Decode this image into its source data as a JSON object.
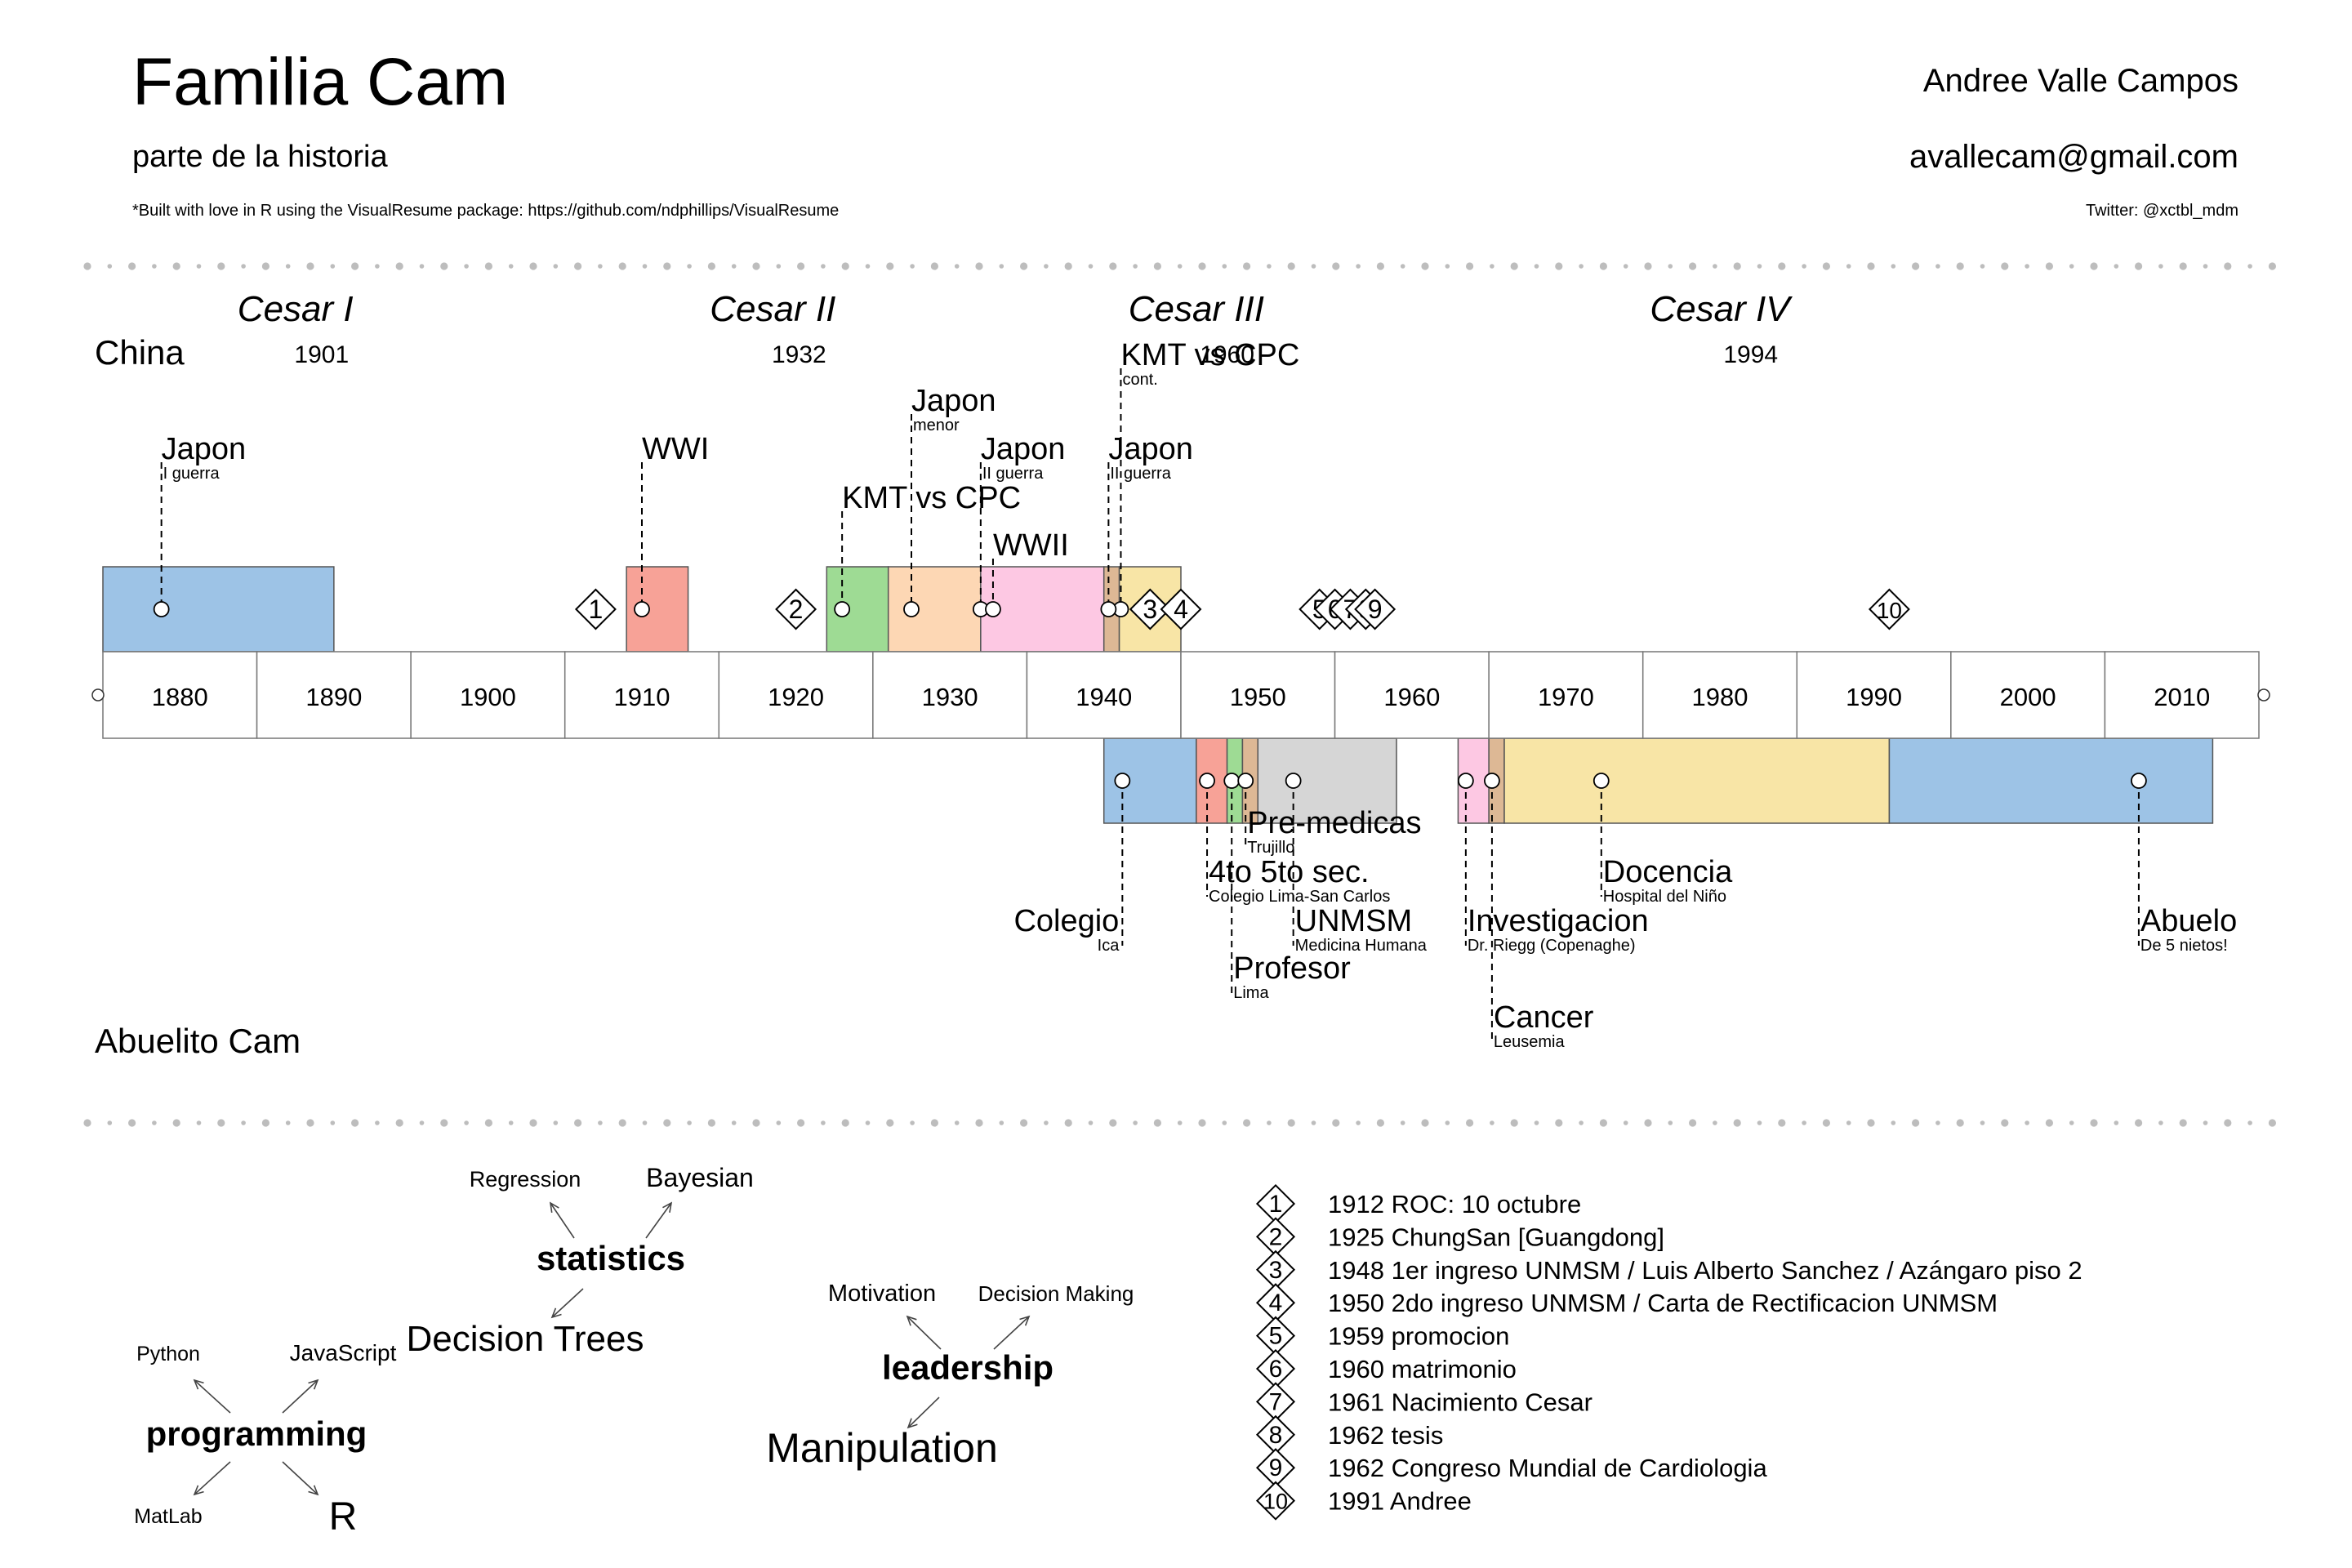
{
  "header": {
    "title": "Familia Cam",
    "subtitle": "parte de la historia",
    "credit": "*Built with love in R using the VisualResume package: https://github.com/ndphillips/VisualResume",
    "author": "Andree Valle Campos",
    "email": "avallecam@gmail.com",
    "twitter": "Twitter: @xctbl_mdm"
  },
  "chart_data": {
    "type": "timeline",
    "xlim": [
      1875,
      2015
    ],
    "ticks": [
      1880,
      1890,
      1900,
      1910,
      1920,
      1930,
      1940,
      1950,
      1960,
      1970,
      1980,
      1990,
      2000,
      2010
    ],
    "top_label": "China",
    "bottom_label": "Abuelito Cam",
    "colors": {
      "blue": "#9dc3e6",
      "red": "#f7a297",
      "green": "#9edb94",
      "peach": "#fdd7b4",
      "pink": "#fdc8e3",
      "tan": "#ddb895",
      "yellow": "#f8e5a6",
      "gray": "#d6d6d6"
    },
    "generations": [
      {
        "name": "Cesar I",
        "year": "1901",
        "x": 1887.5,
        "year_x": 1889.2
      },
      {
        "name": "Cesar II",
        "year": "1932",
        "x": 1918.5,
        "year_x": 1920.2
      },
      {
        "name": "Cesar III",
        "year": "1960",
        "x": 1946.0,
        "year_x": 1948.0
      },
      {
        "name": "Cesar IV",
        "year": "1994",
        "x": 1980.0,
        "year_x": 1982.0
      }
    ],
    "top_bars": [
      {
        "start": 1875,
        "end": 1890,
        "color": "blue"
      },
      {
        "start": 1909,
        "end": 1913,
        "color": "red"
      },
      {
        "start": 1922,
        "end": 1926,
        "color": "green"
      },
      {
        "start": 1926,
        "end": 1932,
        "color": "peach"
      },
      {
        "start": 1932,
        "end": 1940,
        "color": "pink"
      },
      {
        "start": 1940,
        "end": 1941,
        "color": "tan"
      },
      {
        "start": 1941,
        "end": 1945,
        "color": "yellow"
      }
    ],
    "top_events": [
      {
        "title": "Japon",
        "sub": "I guerra",
        "x": 1878.8,
        "level": 4
      },
      {
        "title": "WWI",
        "sub": "",
        "x": 1910.0,
        "level": 4
      },
      {
        "title": "Japon",
        "sub": "menor",
        "x": 1927.5,
        "level": 5
      },
      {
        "title": "KMT vs CPC",
        "sub": "",
        "x": 1923.0,
        "level": 3
      },
      {
        "title": "Japon",
        "sub": "II guerra",
        "x": 1932.0,
        "level": 4
      },
      {
        "title": "WWII",
        "sub": "",
        "x": 1932.8,
        "level": 2
      },
      {
        "title": "KMT vs CPC",
        "sub": "cont.",
        "x": 1941.1,
        "level": 6
      },
      {
        "title": "Japon",
        "sub": "II guerra",
        "x": 1940.3,
        "level": 4
      }
    ],
    "bottom_bars": [
      {
        "start": 1940,
        "end": 1946,
        "color": "blue"
      },
      {
        "start": 1946,
        "end": 1948,
        "color": "red"
      },
      {
        "start": 1948,
        "end": 1949,
        "color": "green"
      },
      {
        "start": 1949,
        "end": 1950,
        "color": "tan"
      },
      {
        "start": 1950,
        "end": 1959,
        "color": "gray"
      },
      {
        "start": 1963,
        "end": 1965,
        "color": "pink"
      },
      {
        "start": 1965,
        "end": 1966,
        "color": "tan"
      },
      {
        "start": 1966,
        "end": 1991,
        "color": "yellow"
      },
      {
        "start": 1991,
        "end": 2012,
        "color": "blue"
      }
    ],
    "bottom_events": [
      {
        "title": "Colegio",
        "sub": "Ica",
        "x": 1941.2,
        "level": 3,
        "align": "right"
      },
      {
        "title": "4to 5to sec.",
        "sub": "Colegio Lima-San Carlos",
        "x": 1946.7,
        "level": 2,
        "align": "left"
      },
      {
        "title": "Profesor",
        "sub": "Lima",
        "x": 1948.3,
        "level": 4,
        "align": "left"
      },
      {
        "title": "Pre-medicas",
        "sub": "Trujillo",
        "x": 1949.2,
        "level": 1,
        "align": "left"
      },
      {
        "title": "UNMSM",
        "sub": "Medicina Humana",
        "x": 1952.3,
        "level": 3,
        "align": "left"
      },
      {
        "title": "Investigacion",
        "sub": "Dr. Riegg (Copenaghe)",
        "x": 1963.5,
        "level": 3,
        "align": "left"
      },
      {
        "title": "Cancer",
        "sub": "Leusemia",
        "x": 1965.2,
        "level": 5,
        "align": "left"
      },
      {
        "title": "Docencia",
        "sub": "Hospital del Niño",
        "x": 1972.3,
        "level": 2,
        "align": "left"
      },
      {
        "title": "Abuelo",
        "sub": "De 5 nietos!",
        "x": 2007.2,
        "level": 3,
        "align": "left"
      }
    ],
    "milestones": [
      {
        "n": "1",
        "x": 1907
      },
      {
        "n": "2",
        "x": 1920
      },
      {
        "n": "3",
        "x": 1943
      },
      {
        "n": "4",
        "x": 1945
      },
      {
        "n": "5",
        "x": 1954
      },
      {
        "n": "6",
        "x": 1955
      },
      {
        "n": "7",
        "x": 1956
      },
      {
        "n": "8",
        "x": 1957
      },
      {
        "n": "9",
        "x": 1957.6
      },
      {
        "n": "10",
        "x": 1991
      }
    ],
    "skills": [
      {
        "main": "statistics",
        "sub": [
          "Regression",
          "Bayesian",
          "Decision Trees"
        ]
      },
      {
        "main": "leadership",
        "sub": [
          "Motivation",
          "Decision Making",
          "Manipulation"
        ]
      },
      {
        "main": "programming",
        "sub": [
          "Python",
          "JavaScript",
          "MatLab",
          "R"
        ]
      }
    ],
    "legend": [
      {
        "n": "1",
        "text": "1912 ROC: 10 octubre"
      },
      {
        "n": "2",
        "text": "1925 ChungSan [Guangdong]"
      },
      {
        "n": "3",
        "text": "1948 1er ingreso UNMSM / Luis Alberto Sanchez / Azángaro piso 2"
      },
      {
        "n": "4",
        "text": "1950 2do ingreso UNMSM / Carta de Rectificacion UNMSM"
      },
      {
        "n": "5",
        "text": "1959 promocion"
      },
      {
        "n": "6",
        "text": "1960 matrimonio"
      },
      {
        "n": "7",
        "text": "1961 Nacimiento Cesar"
      },
      {
        "n": "8",
        "text": "1962 tesis"
      },
      {
        "n": "9",
        "text": "1962 Congreso Mundial de Cardiologia"
      },
      {
        "n": "10",
        "text": "1991 Andree"
      }
    ]
  }
}
